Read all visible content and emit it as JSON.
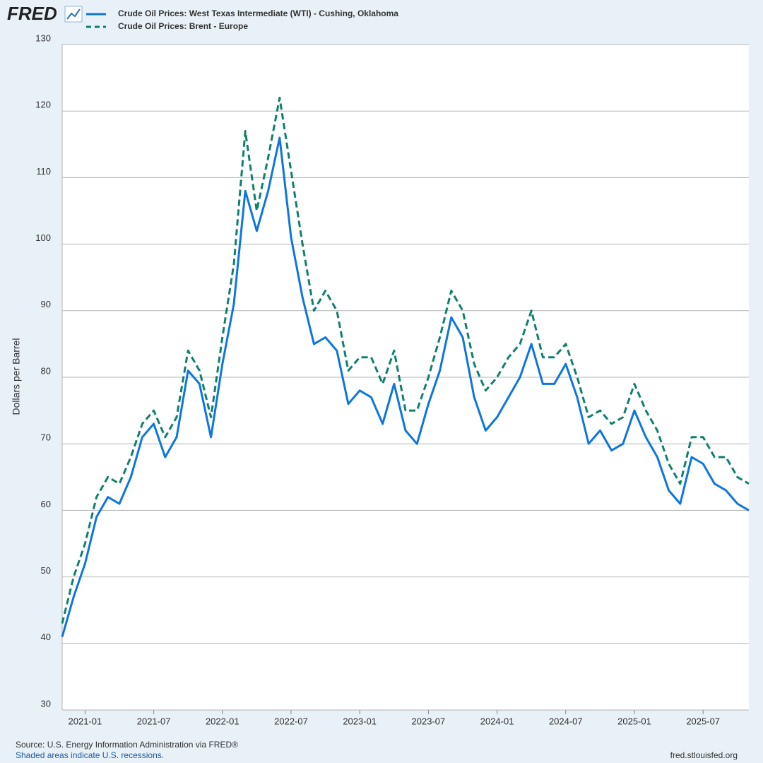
{
  "chart_data": {
    "type": "line",
    "logo": "FRED",
    "ylabel": "Dollars per Barrel",
    "source": "Source: U.S. Energy Information Administration via FRED®",
    "note": "Shaded areas indicate U.S. recessions.",
    "site": "fred.stlouisfed.org",
    "x": [
      "2020-11",
      "2020-12",
      "2021-01",
      "2021-02",
      "2021-03",
      "2021-04",
      "2021-05",
      "2021-06",
      "2021-07",
      "2021-08",
      "2021-09",
      "2021-10",
      "2021-11",
      "2021-12",
      "2022-01",
      "2022-02",
      "2022-03",
      "2022-04",
      "2022-05",
      "2022-06",
      "2022-07",
      "2022-08",
      "2022-09",
      "2022-10",
      "2022-11",
      "2022-12",
      "2023-01",
      "2023-02",
      "2023-03",
      "2023-04",
      "2023-05",
      "2023-06",
      "2023-07",
      "2023-08",
      "2023-09",
      "2023-10",
      "2023-11",
      "2023-12",
      "2024-01",
      "2024-02",
      "2024-03",
      "2024-04",
      "2024-05",
      "2024-06",
      "2024-07",
      "2024-08",
      "2024-09",
      "2024-10",
      "2024-11",
      "2024-12",
      "2025-01",
      "2025-02",
      "2025-03",
      "2025-04",
      "2025-05",
      "2025-06",
      "2025-07",
      "2025-08",
      "2025-09",
      "2025-10",
      "2025-11"
    ],
    "series": [
      {
        "name": "Crude Oil Prices: West Texas Intermediate (WTI) - Cushing, Oklahoma",
        "color": "#0d76de",
        "style": "solid",
        "values": [
          41,
          47,
          52,
          59,
          62,
          61,
          65,
          71,
          73,
          68,
          71,
          81,
          79,
          71,
          82,
          91,
          108,
          102,
          108,
          116,
          101,
          92,
          85,
          86,
          84,
          76,
          78,
          77,
          73,
          79,
          72,
          70,
          76,
          81,
          89,
          86,
          77,
          72,
          74,
          77,
          80,
          85,
          79,
          79,
          82,
          77,
          70,
          72,
          69,
          70,
          75,
          71,
          68,
          63,
          61,
          68,
          67,
          64,
          63,
          61,
          60
        ]
      },
      {
        "name": "Crude Oil Prices: Brent - Europe",
        "color": "#0f7f6e",
        "style": "dashed",
        "values": [
          43,
          50,
          55,
          62,
          65,
          64,
          68,
          73,
          75,
          71,
          74,
          84,
          81,
          74,
          86,
          97,
          117,
          105,
          113,
          122,
          111,
          100,
          90,
          93,
          90,
          81,
          83,
          83,
          79,
          84,
          75,
          75,
          80,
          86,
          93,
          90,
          82,
          78,
          80,
          83,
          85,
          90,
          83,
          83,
          85,
          80,
          74,
          75,
          73,
          74,
          79,
          75,
          72,
          67,
          64,
          71,
          71,
          68,
          68,
          65,
          64
        ]
      }
    ],
    "xlim": [
      "2020-11",
      "2025-11"
    ],
    "xticks": [
      "2021-01",
      "2021-07",
      "2022-01",
      "2022-07",
      "2023-01",
      "2023-07",
      "2024-01",
      "2024-07",
      "2025-01",
      "2025-07"
    ],
    "ylim": [
      30,
      130
    ],
    "yticks": [
      30,
      40,
      50,
      60,
      70,
      80,
      90,
      100,
      110,
      120,
      130
    ],
    "grid": true
  }
}
